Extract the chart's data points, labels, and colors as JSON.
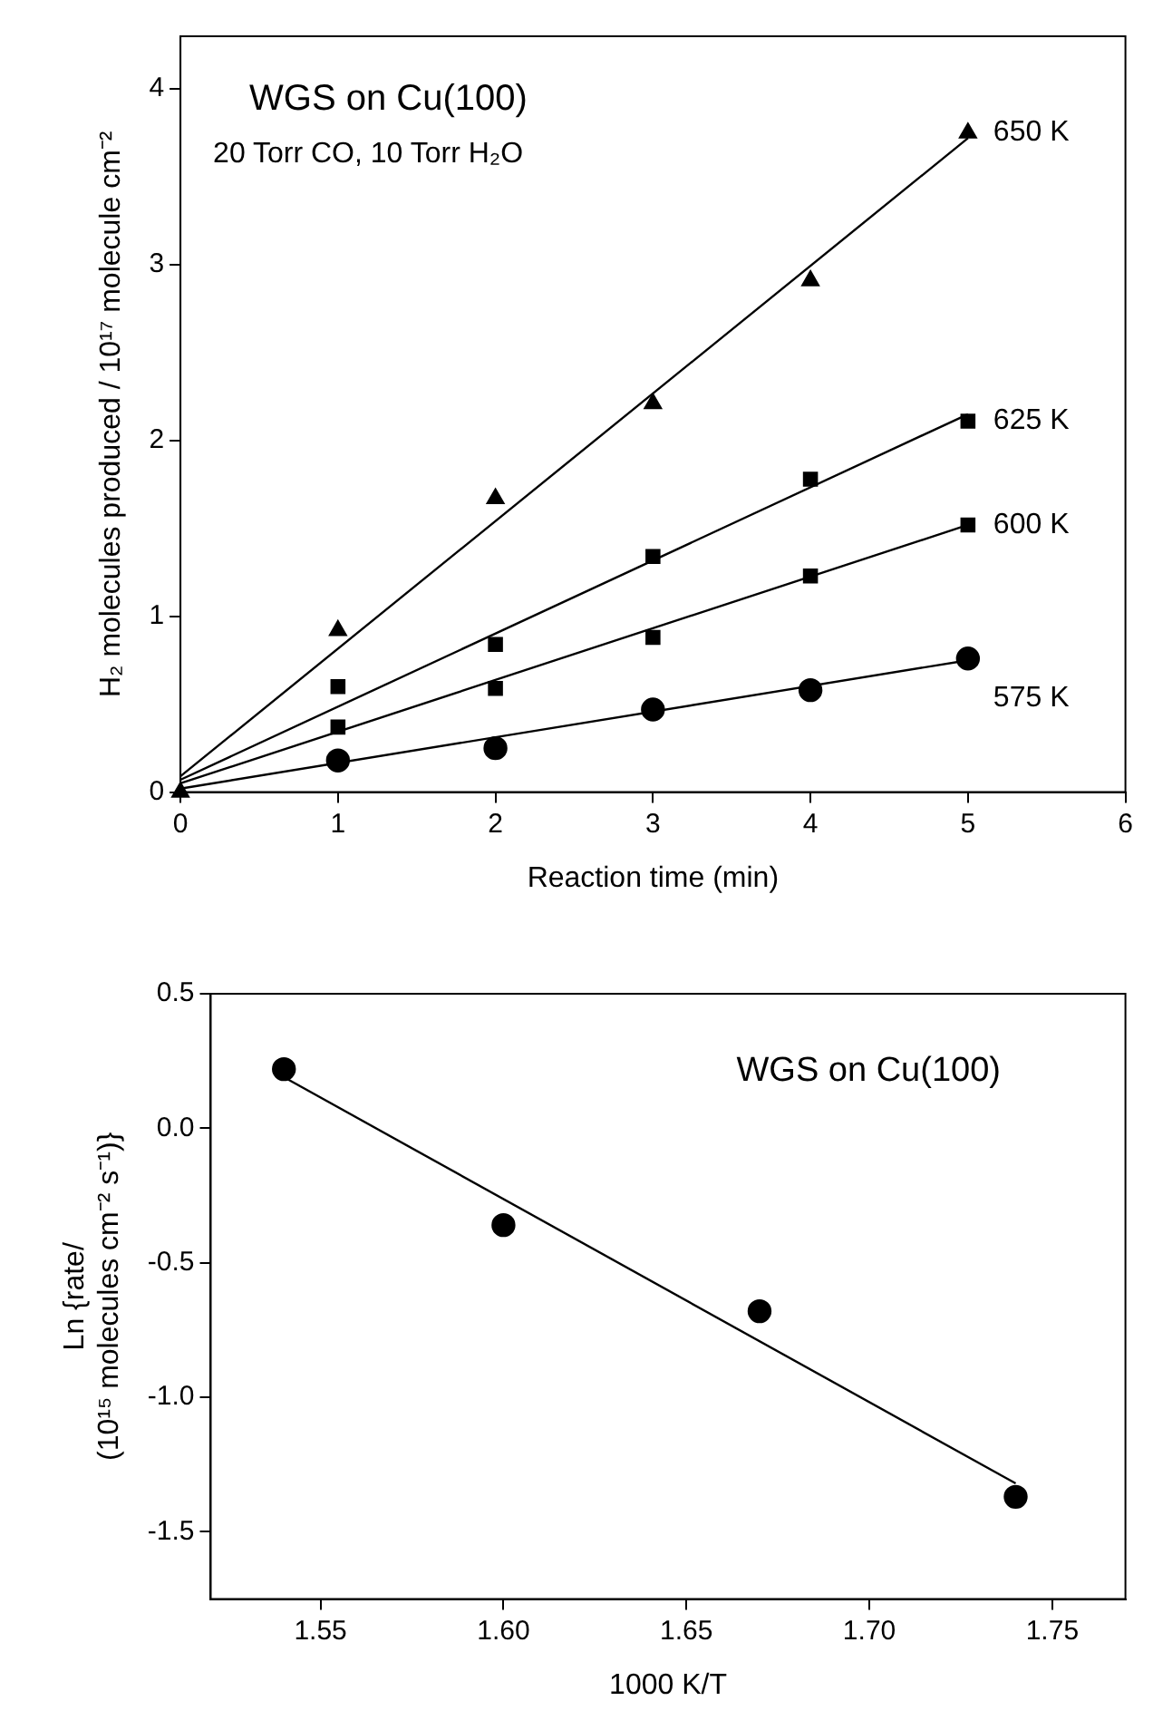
{
  "chart_data": [
    {
      "type": "scatter",
      "xlabel": "Reaction time (min)",
      "ylabel": "H₂ molecules produced / 10¹⁷ molecule cm⁻²",
      "annotations": [
        "WGS on Cu(100)",
        "20 Torr CO, 10 Torr H₂O"
      ],
      "xlim": [
        0,
        6
      ],
      "xticks": [
        0,
        1,
        2,
        3,
        4,
        5,
        6
      ],
      "ylim": [
        0,
        4.3
      ],
      "yticks": [
        0,
        1,
        2,
        3,
        4
      ],
      "grid": false,
      "legend": false,
      "series": [
        {
          "name": "650 K",
          "color": "#000000",
          "marker": "triangle",
          "x": [
            0,
            1,
            2,
            3,
            4,
            5
          ],
          "values": [
            0,
            0.92,
            1.67,
            2.21,
            2.91,
            3.75
          ]
        },
        {
          "name": "625 K",
          "color": "#000000",
          "marker": "square",
          "x": [
            1,
            2,
            3,
            4,
            5
          ],
          "values": [
            0.6,
            0.84,
            1.34,
            1.78,
            2.11
          ]
        },
        {
          "name": "600 K",
          "color": "#000000",
          "marker": "square",
          "x": [
            1,
            2,
            3,
            4,
            5
          ],
          "values": [
            0.37,
            0.59,
            0.88,
            1.23,
            1.52
          ]
        },
        {
          "name": "575 K",
          "color": "#000000",
          "marker": "circle",
          "x": [
            1,
            2,
            3,
            4,
            5
          ],
          "values": [
            0.18,
            0.25,
            0.47,
            0.58,
            0.76
          ]
        },
        {
          "type": "line",
          "color": "#000000",
          "marker": "none",
          "x": [
            0,
            5
          ],
          "values": [
            0.09,
            3.72
          ]
        },
        {
          "type": "line",
          "color": "#000000",
          "marker": "none",
          "x": [
            0,
            5
          ],
          "values": [
            0.07,
            2.15
          ]
        },
        {
          "type": "line",
          "color": "#000000",
          "marker": "none",
          "x": [
            0,
            5
          ],
          "values": [
            0.05,
            1.52
          ]
        },
        {
          "type": "line",
          "color": "#000000",
          "marker": "none",
          "x": [
            0,
            5
          ],
          "values": [
            0.02,
            0.75
          ]
        }
      ]
    },
    {
      "type": "scatter",
      "xlabel": "1000 K/T",
      "ylabel": "Ln {rate/\n(10¹⁵ molecules cm⁻² s⁻¹)}",
      "annotations": [
        "WGS on Cu(100)"
      ],
      "xlim": [
        1.52,
        1.77
      ],
      "xticks": [
        {
          "value": 1.55,
          "label": "1.55"
        },
        {
          "value": 1.6,
          "label": "1.60"
        },
        {
          "value": 1.65,
          "label": "1.65"
        },
        {
          "value": 1.7,
          "label": "1.70"
        },
        {
          "value": 1.75,
          "label": "1.75"
        }
      ],
      "ylim": [
        -1.75,
        0.5
      ],
      "yticks": [
        {
          "value": -1.5,
          "label": "-1.5"
        },
        {
          "value": -1,
          "label": "-1.0"
        },
        {
          "value": -0.5,
          "label": "-0.5"
        },
        {
          "value": 0,
          "label": "0.0"
        },
        0.5
      ],
      "grid": false,
      "legend": false,
      "series": [
        {
          "color": "#000000",
          "marker": "circle",
          "x": [
            1.54,
            1.6,
            1.67,
            1.74
          ],
          "values": [
            0.22,
            -0.36,
            -0.68,
            -1.37
          ]
        },
        {
          "type": "line",
          "color": "#000000",
          "marker": "none",
          "x": [
            1.54,
            1.74
          ],
          "values": [
            0.19,
            -1.32
          ]
        }
      ]
    }
  ]
}
